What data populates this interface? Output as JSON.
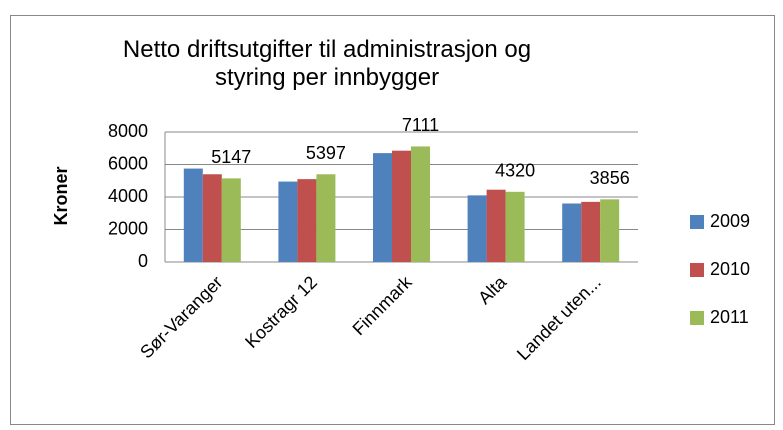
{
  "chart_data": {
    "type": "bar",
    "title": "Netto driftsutgifter til administrasjon og styring per innbygger",
    "y_label": "Kroner",
    "categories": [
      "Sør-Varanger",
      "Kostragr 12",
      "Finnmark",
      "Alta",
      "Landet uten..."
    ],
    "series": [
      {
        "name": "2009",
        "color": "#4f81bd",
        "values": [
          5750,
          4950,
          6700,
          4100,
          3600
        ]
      },
      {
        "name": "2010",
        "color": "#c0504d",
        "values": [
          5400,
          5100,
          6850,
          4450,
          3700
        ]
      },
      {
        "name": "2011",
        "color": "#9bbb59",
        "values": [
          5147,
          5397,
          7111,
          4320,
          3856
        ],
        "show_labels": true
      }
    ],
    "ylim": [
      0,
      8000
    ],
    "yticks": [
      0,
      2000,
      4000,
      6000,
      8000
    ],
    "grid": true,
    "legend": "right"
  }
}
